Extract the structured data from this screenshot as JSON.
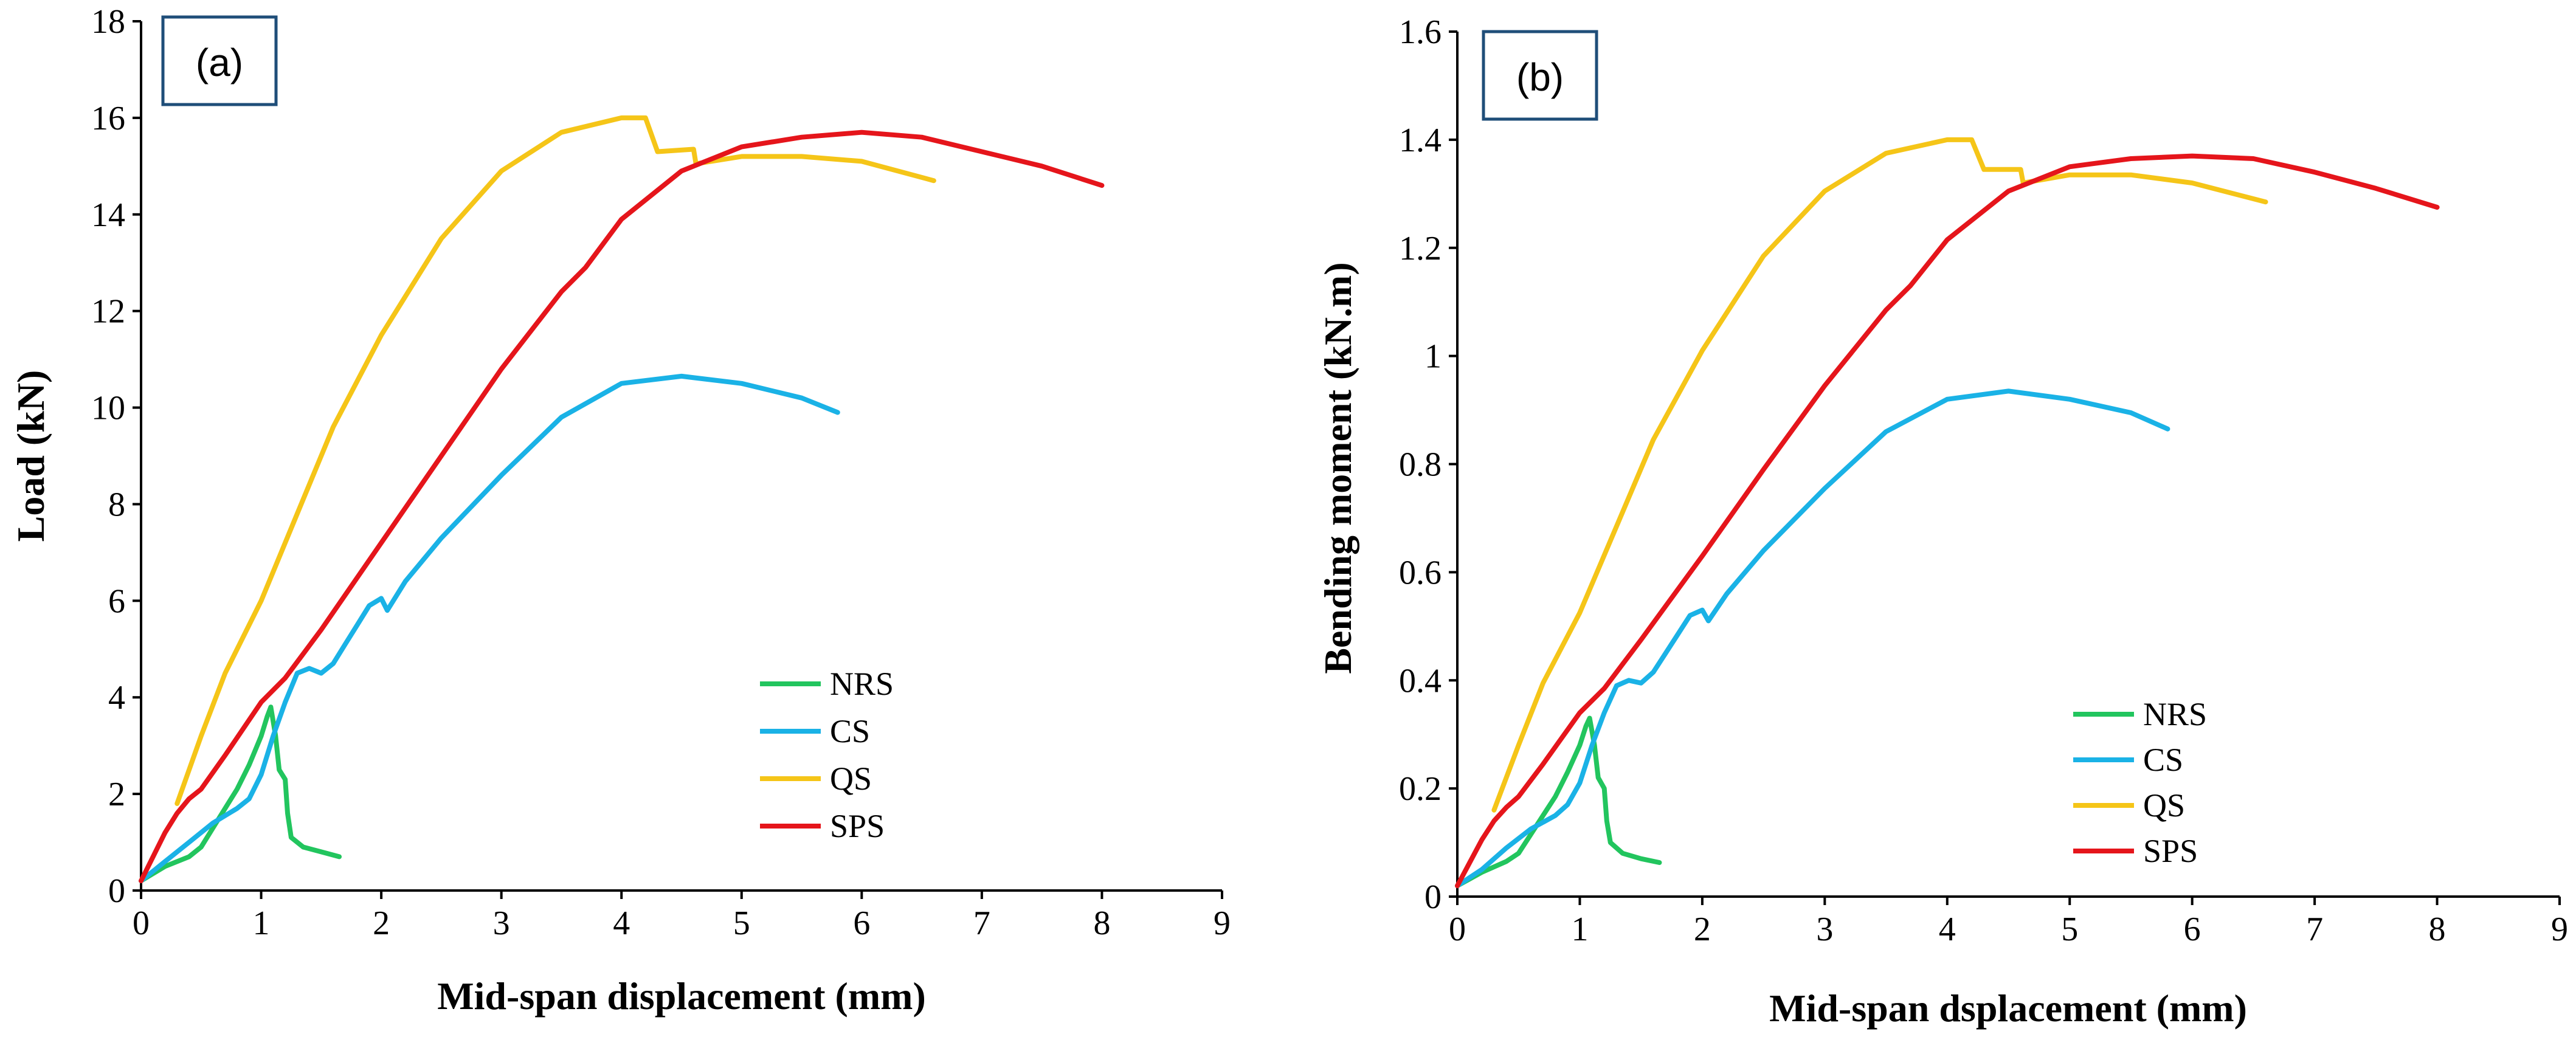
{
  "chart_data": [
    {
      "panel": "a",
      "type": "line",
      "panel_label": "(a)",
      "title": "",
      "xlabel": "Mid-span displacement (mm)",
      "ylabel": "Load (kN)",
      "xlim": [
        0,
        9
      ],
      "ylim": [
        0,
        18
      ],
      "xticks": [
        0,
        1,
        2,
        3,
        4,
        5,
        6,
        7,
        8,
        9
      ],
      "yticks": [
        0,
        2,
        4,
        6,
        8,
        10,
        12,
        14,
        16,
        18
      ],
      "tick_format_decimals": 0,
      "grid": false,
      "legend_placement": "lower-right",
      "series": [
        {
          "name": "NRS",
          "color": "#22C55E",
          "points": [
            [
              0,
              0.2
            ],
            [
              0.2,
              0.5
            ],
            [
              0.4,
              0.7
            ],
            [
              0.5,
              0.9
            ],
            [
              0.6,
              1.3
            ],
            [
              0.7,
              1.7
            ],
            [
              0.8,
              2.1
            ],
            [
              0.9,
              2.6
            ],
            [
              1.0,
              3.2
            ],
            [
              1.05,
              3.6
            ],
            [
              1.08,
              3.8
            ],
            [
              1.12,
              3.2
            ],
            [
              1.15,
              2.5
            ],
            [
              1.2,
              2.3
            ],
            [
              1.22,
              1.6
            ],
            [
              1.25,
              1.1
            ],
            [
              1.35,
              0.9
            ],
            [
              1.5,
              0.8
            ],
            [
              1.65,
              0.7
            ]
          ]
        },
        {
          "name": "CS",
          "color": "#1AB2E6",
          "points": [
            [
              0,
              0.2
            ],
            [
              0.2,
              0.6
            ],
            [
              0.4,
              1.0
            ],
            [
              0.6,
              1.4
            ],
            [
              0.8,
              1.7
            ],
            [
              0.9,
              1.9
            ],
            [
              1.0,
              2.4
            ],
            [
              1.1,
              3.2
            ],
            [
              1.2,
              3.9
            ],
            [
              1.3,
              4.5
            ],
            [
              1.4,
              4.6
            ],
            [
              1.5,
              4.5
            ],
            [
              1.6,
              4.7
            ],
            [
              1.7,
              5.1
            ],
            [
              1.8,
              5.5
            ],
            [
              1.9,
              5.9
            ],
            [
              2.0,
              6.05
            ],
            [
              2.05,
              5.8
            ],
            [
              2.2,
              6.4
            ],
            [
              2.5,
              7.3
            ],
            [
              3.0,
              8.6
            ],
            [
              3.5,
              9.8
            ],
            [
              4.0,
              10.5
            ],
            [
              4.5,
              10.65
            ],
            [
              5.0,
              10.5
            ],
            [
              5.5,
              10.2
            ],
            [
              5.8,
              9.9
            ]
          ]
        },
        {
          "name": "QS",
          "color": "#F5C518",
          "points": [
            [
              0.3,
              1.8
            ],
            [
              0.5,
              3.2
            ],
            [
              0.7,
              4.5
            ],
            [
              1.0,
              6.0
            ],
            [
              1.3,
              7.8
            ],
            [
              1.6,
              9.6
            ],
            [
              2.0,
              11.5
            ],
            [
              2.5,
              13.5
            ],
            [
              3.0,
              14.9
            ],
            [
              3.5,
              15.7
            ],
            [
              4.0,
              16.0
            ],
            [
              4.2,
              16.0
            ],
            [
              4.3,
              15.3
            ],
            [
              4.6,
              15.35
            ],
            [
              4.62,
              15.05
            ],
            [
              5.0,
              15.2
            ],
            [
              5.5,
              15.2
            ],
            [
              6.0,
              15.1
            ],
            [
              6.6,
              14.7
            ]
          ]
        },
        {
          "name": "SPS",
          "color": "#E5151B",
          "points": [
            [
              0,
              0.2
            ],
            [
              0.2,
              1.2
            ],
            [
              0.3,
              1.6
            ],
            [
              0.4,
              1.9
            ],
            [
              0.5,
              2.1
            ],
            [
              0.7,
              2.8
            ],
            [
              1.0,
              3.9
            ],
            [
              1.2,
              4.4
            ],
            [
              1.5,
              5.4
            ],
            [
              2.0,
              7.2
            ],
            [
              2.5,
              9.0
            ],
            [
              3.0,
              10.8
            ],
            [
              3.5,
              12.4
            ],
            [
              3.7,
              12.9
            ],
            [
              4.0,
              13.9
            ],
            [
              4.5,
              14.9
            ],
            [
              5.0,
              15.4
            ],
            [
              5.5,
              15.6
            ],
            [
              6.0,
              15.7
            ],
            [
              6.5,
              15.6
            ],
            [
              7.0,
              15.3
            ],
            [
              7.5,
              15.0
            ],
            [
              8.0,
              14.6
            ]
          ]
        }
      ]
    },
    {
      "panel": "b",
      "type": "line",
      "panel_label": "(b)",
      "title": "",
      "xlabel": "Mid-span dsplacement (mm)",
      "ylabel": "Bending moment (kN.m)",
      "xlim": [
        0,
        9
      ],
      "ylim": [
        0,
        1.6
      ],
      "xticks": [
        0,
        1,
        2,
        3,
        4,
        5,
        6,
        7,
        8,
        9
      ],
      "yticks": [
        0,
        0.2,
        0.4,
        0.6,
        0.8,
        1,
        1.2,
        1.4,
        1.6
      ],
      "tick_format_decimals": 1,
      "grid": false,
      "legend_placement": "lower-right",
      "series": [
        {
          "name": "NRS",
          "color": "#22C55E",
          "points": [
            [
              0,
              0.02
            ],
            [
              0.2,
              0.045
            ],
            [
              0.4,
              0.065
            ],
            [
              0.5,
              0.08
            ],
            [
              0.6,
              0.115
            ],
            [
              0.7,
              0.15
            ],
            [
              0.8,
              0.185
            ],
            [
              0.9,
              0.23
            ],
            [
              1.0,
              0.28
            ],
            [
              1.05,
              0.315
            ],
            [
              1.08,
              0.33
            ],
            [
              1.12,
              0.28
            ],
            [
              1.15,
              0.22
            ],
            [
              1.2,
              0.2
            ],
            [
              1.22,
              0.14
            ],
            [
              1.25,
              0.1
            ],
            [
              1.35,
              0.08
            ],
            [
              1.5,
              0.07
            ],
            [
              1.65,
              0.063
            ]
          ]
        },
        {
          "name": "CS",
          "color": "#1AB2E6",
          "points": [
            [
              0,
              0.02
            ],
            [
              0.2,
              0.05
            ],
            [
              0.4,
              0.09
            ],
            [
              0.6,
              0.125
            ],
            [
              0.8,
              0.15
            ],
            [
              0.9,
              0.17
            ],
            [
              1.0,
              0.21
            ],
            [
              1.1,
              0.28
            ],
            [
              1.2,
              0.34
            ],
            [
              1.3,
              0.39
            ],
            [
              1.4,
              0.4
            ],
            [
              1.5,
              0.395
            ],
            [
              1.6,
              0.415
            ],
            [
              1.7,
              0.45
            ],
            [
              1.8,
              0.485
            ],
            [
              1.9,
              0.52
            ],
            [
              2.0,
              0.53
            ],
            [
              2.05,
              0.51
            ],
            [
              2.2,
              0.56
            ],
            [
              2.5,
              0.64
            ],
            [
              3.0,
              0.755
            ],
            [
              3.5,
              0.86
            ],
            [
              4.0,
              0.92
            ],
            [
              4.5,
              0.935
            ],
            [
              5.0,
              0.92
            ],
            [
              5.5,
              0.895
            ],
            [
              5.8,
              0.865
            ]
          ]
        },
        {
          "name": "QS",
          "color": "#F5C518",
          "points": [
            [
              0.3,
              0.16
            ],
            [
              0.5,
              0.28
            ],
            [
              0.7,
              0.395
            ],
            [
              1.0,
              0.525
            ],
            [
              1.3,
              0.685
            ],
            [
              1.6,
              0.845
            ],
            [
              2.0,
              1.01
            ],
            [
              2.5,
              1.185
            ],
            [
              3.0,
              1.305
            ],
            [
              3.5,
              1.375
            ],
            [
              4.0,
              1.4
            ],
            [
              4.2,
              1.4
            ],
            [
              4.3,
              1.345
            ],
            [
              4.6,
              1.345
            ],
            [
              4.62,
              1.32
            ],
            [
              5.0,
              1.335
            ],
            [
              5.5,
              1.335
            ],
            [
              6.0,
              1.32
            ],
            [
              6.6,
              1.285
            ]
          ]
        },
        {
          "name": "SPS",
          "color": "#E5151B",
          "points": [
            [
              0,
              0.02
            ],
            [
              0.2,
              0.105
            ],
            [
              0.3,
              0.14
            ],
            [
              0.4,
              0.165
            ],
            [
              0.5,
              0.185
            ],
            [
              0.7,
              0.245
            ],
            [
              1.0,
              0.34
            ],
            [
              1.2,
              0.385
            ],
            [
              1.5,
              0.475
            ],
            [
              2.0,
              0.63
            ],
            [
              2.5,
              0.79
            ],
            [
              3.0,
              0.945
            ],
            [
              3.5,
              1.085
            ],
            [
              3.7,
              1.13
            ],
            [
              4.0,
              1.215
            ],
            [
              4.5,
              1.305
            ],
            [
              5.0,
              1.35
            ],
            [
              5.5,
              1.365
            ],
            [
              6.0,
              1.37
            ],
            [
              6.5,
              1.365
            ],
            [
              7.0,
              1.34
            ],
            [
              7.5,
              1.31
            ],
            [
              8.0,
              1.275
            ]
          ]
        }
      ]
    }
  ]
}
